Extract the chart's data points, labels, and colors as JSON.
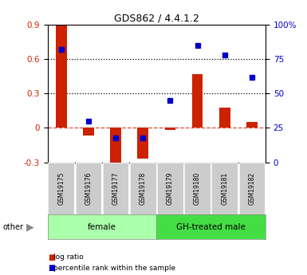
{
  "title": "GDS862 / 4.4.1.2",
  "samples": [
    "GSM19175",
    "GSM19176",
    "GSM19177",
    "GSM19178",
    "GSM19179",
    "GSM19180",
    "GSM19181",
    "GSM19182"
  ],
  "log_ratio": [
    0.9,
    -0.07,
    -0.32,
    -0.27,
    -0.02,
    0.47,
    0.18,
    0.05
  ],
  "percentile_rank": [
    82,
    30,
    18,
    18,
    45,
    85,
    78,
    62
  ],
  "groups": [
    {
      "label": "female",
      "color": "#AAFFAA",
      "start": 0,
      "end": 3
    },
    {
      "label": "GH-treated male",
      "color": "#44DD44",
      "start": 4,
      "end": 7
    }
  ],
  "bar_color": "#CC2200",
  "marker_color": "#0000CC",
  "ylim_left": [
    -0.3,
    0.9
  ],
  "ylim_right": [
    0,
    100
  ],
  "yticks_left": [
    -0.3,
    0.0,
    0.3,
    0.6,
    0.9
  ],
  "ytick_labels_left": [
    "-0.3",
    "0",
    "0.3",
    "0.6",
    "0.9"
  ],
  "yticks_right": [
    0,
    25,
    50,
    75,
    100
  ],
  "ytick_labels_right": [
    "0",
    "25",
    "50",
    "75",
    "100%"
  ],
  "hlines": [
    0.3,
    0.6
  ],
  "zero_line": 0.0,
  "legend_log_ratio": "log ratio",
  "legend_percentile": "percentile rank within the sample",
  "other_label": "other",
  "gray_box_color": "#CCCCCC"
}
